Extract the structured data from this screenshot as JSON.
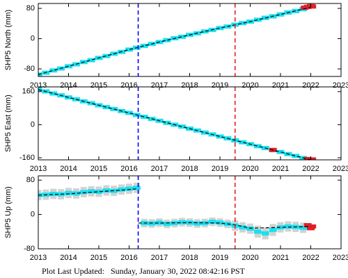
{
  "chart_data": [
    {
      "type": "scatter",
      "ylabel": "SHP5 North (mm)",
      "xlim": [
        2013,
        2023
      ],
      "xticks": [
        2013,
        2014,
        2015,
        2016,
        2017,
        2018,
        2019,
        2020,
        2021,
        2022,
        2023
      ],
      "ylim": [
        -100,
        93
      ],
      "yticks": [
        -80,
        0,
        80
      ],
      "vlines": [
        {
          "x": 2016.3,
          "color": "#0000ff"
        },
        {
          "x": 2019.5,
          "color": "#e0202a"
        }
      ],
      "series": [
        {
          "color": "#19e0f0",
          "style": "points",
          "error_color": "#c8c8c8",
          "x": [
            2013,
            2013.25,
            2013.5,
            2013.75,
            2014,
            2014.25,
            2014.5,
            2014.75,
            2015,
            2015.25,
            2015.5,
            2015.75,
            2016,
            2016.25,
            2016.5,
            2016.75,
            2017,
            2017.25,
            2017.5,
            2017.75,
            2018,
            2018.25,
            2018.5,
            2018.75,
            2019,
            2019.25,
            2019.5,
            2019.75,
            2020,
            2020.25,
            2020.5,
            2020.75,
            2021,
            2021.25,
            2021.5,
            2021.75
          ],
          "values": [
            -95,
            -90,
            -84,
            -79,
            -73,
            -68,
            -62,
            -57,
            -51,
            -46,
            -40,
            -35,
            -29,
            -24,
            -19,
            -14,
            -9,
            -4,
            1,
            5,
            10,
            14,
            19,
            23,
            28,
            32,
            37,
            41,
            45,
            50,
            55,
            59,
            64,
            69,
            73,
            78
          ],
          "errors": [
            4,
            4,
            4,
            4,
            4,
            4,
            4,
            4,
            4,
            4,
            4,
            4,
            4,
            4,
            4,
            4,
            4,
            4,
            4,
            4,
            4,
            4,
            4,
            4,
            4,
            4,
            4,
            5,
            5,
            5,
            6,
            6,
            6,
            6,
            6,
            6
          ]
        },
        {
          "color": "#e0202a",
          "style": "points",
          "x": [
            2021.8,
            2021.9,
            2022,
            2022.05
          ],
          "values": [
            82,
            84,
            86,
            85
          ]
        },
        {
          "color": "#000000",
          "style": "dashed",
          "x": [
            2013,
            2014,
            2015,
            2016,
            2017,
            2018,
            2019,
            2020,
            2021,
            2022
          ],
          "values": [
            -95,
            -73,
            -51,
            -29,
            -9,
            10,
            28,
            45,
            64,
            83
          ]
        }
      ]
    },
    {
      "type": "scatter",
      "ylabel": "SHP5 East (mm)",
      "xlim": [
        2013,
        2023
      ],
      "xticks": [
        2013,
        2014,
        2015,
        2016,
        2017,
        2018,
        2019,
        2020,
        2021,
        2022,
        2023
      ],
      "ylim": [
        -170,
        183
      ],
      "yticks": [
        -160,
        0,
        160
      ],
      "vlines": [
        {
          "x": 2016.3,
          "color": "#0000ff"
        },
        {
          "x": 2019.5,
          "color": "#e0202a"
        }
      ],
      "series": [
        {
          "color": "#19e0f0",
          "style": "points",
          "error_color": "#c8c8c8",
          "x": [
            2013,
            2013.25,
            2013.5,
            2013.75,
            2014,
            2014.25,
            2014.5,
            2014.75,
            2015,
            2015.25,
            2015.5,
            2015.75,
            2016,
            2016.25,
            2016.5,
            2016.75,
            2017,
            2017.25,
            2017.5,
            2017.75,
            2018,
            2018.25,
            2018.5,
            2018.75,
            2019,
            2019.25,
            2019.5,
            2019.75,
            2020,
            2020.25,
            2020.5,
            2020.75,
            2021,
            2021.25,
            2021.5,
            2021.75
          ],
          "values": [
            170,
            161,
            151,
            142,
            132,
            123,
            113,
            104,
            94,
            85,
            76,
            66,
            57,
            47,
            38,
            28,
            19,
            9,
            0,
            -9,
            -19,
            -28,
            -38,
            -47,
            -57,
            -66,
            -76,
            -85,
            -94,
            -104,
            -113,
            -123,
            -132,
            -142,
            -151,
            -161
          ],
          "errors": [
            3,
            3,
            3,
            3,
            3,
            3,
            3,
            3,
            3,
            3,
            3,
            3,
            3,
            3,
            3,
            3,
            3,
            3,
            3,
            3,
            3,
            3,
            3,
            3,
            3,
            3,
            3,
            3,
            3,
            3,
            3,
            3,
            3,
            3,
            3,
            3
          ]
        },
        {
          "color": "#e0202a",
          "style": "points",
          "x": [
            2020.75,
            2021.9,
            2022,
            2022.05
          ],
          "values": [
            -122,
            -166,
            -170,
            -168
          ]
        },
        {
          "color": "#000000",
          "style": "dashed",
          "x": [
            2013,
            2014,
            2015,
            2016,
            2017,
            2018,
            2019,
            2020,
            2021,
            2022
          ],
          "values": [
            170,
            132,
            94,
            57,
            19,
            -19,
            -57,
            -94,
            -132,
            -170
          ]
        }
      ]
    },
    {
      "type": "scatter",
      "ylabel": "SHP5 Up (mm)",
      "xlim": [
        2013,
        2023
      ],
      "xticks": [
        2013,
        2014,
        2015,
        2016,
        2017,
        2018,
        2019,
        2020,
        2021,
        2022,
        2023
      ],
      "ylim": [
        -80,
        90
      ],
      "yticks": [
        -80,
        0,
        80
      ],
      "vlines": [
        {
          "x": 2016.3,
          "color": "#0000ff"
        },
        {
          "x": 2019.5,
          "color": "#e0202a"
        }
      ],
      "series": [
        {
          "color": "#19e0f0",
          "style": "points",
          "error_color": "#c8c8c8",
          "x": [
            2013,
            2013.25,
            2013.5,
            2013.75,
            2014,
            2014.25,
            2014.5,
            2014.75,
            2015,
            2015.25,
            2015.5,
            2015.75,
            2016,
            2016.25,
            2016.5,
            2016.75,
            2017,
            2017.25,
            2017.5,
            2017.75,
            2018,
            2018.25,
            2018.5,
            2018.75,
            2019,
            2019.25,
            2019.5,
            2019.75,
            2020,
            2020.25,
            2020.5,
            2020.75,
            2021,
            2021.25,
            2021.5,
            2021.75
          ],
          "values": [
            45,
            46,
            48,
            47,
            50,
            49,
            52,
            54,
            53,
            56,
            55,
            58,
            60,
            62,
            -20,
            -21,
            -19,
            -22,
            -20,
            -18,
            -19,
            -21,
            -20,
            -17,
            -19,
            -22,
            -26,
            -30,
            -33,
            -40,
            -44,
            -36,
            -30,
            -28,
            -29,
            -31
          ],
          "errors": [
            12,
            12,
            12,
            12,
            12,
            12,
            12,
            12,
            12,
            12,
            12,
            12,
            12,
            12,
            10,
            10,
            10,
            10,
            10,
            10,
            10,
            10,
            10,
            10,
            10,
            10,
            12,
            12,
            12,
            14,
            14,
            14,
            12,
            12,
            12,
            12
          ]
        },
        {
          "color": "#e0202a",
          "style": "points",
          "x": [
            2021.9,
            2022,
            2022.05
          ],
          "values": [
            -25,
            -32,
            -28
          ]
        },
        {
          "color": "#000000",
          "style": "dashed",
          "x": [
            2013,
            2014,
            2015,
            2016,
            2016.3,
            2016.3,
            2016.3,
            2017,
            2018,
            2019,
            2019.5,
            2020,
            2021,
            2022
          ],
          "values": [
            45,
            48,
            53,
            58,
            60,
            null,
            -20,
            -20,
            -19,
            -20,
            -24,
            -32,
            -30,
            -28
          ]
        }
      ]
    }
  ],
  "footer": "Plot Last Updated:   Sunday, January 30, 2022 08:42:16 PST"
}
